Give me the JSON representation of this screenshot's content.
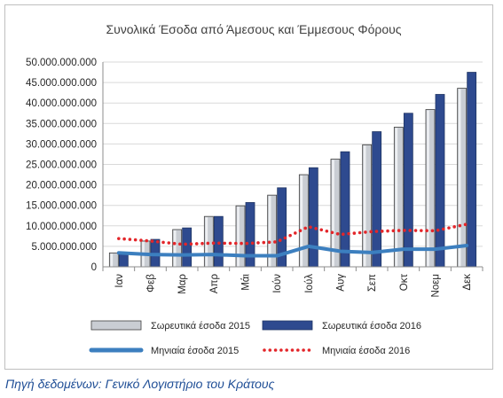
{
  "chart_data": {
    "type": "bar",
    "title": "Συνολικά Έσοδα από Άμεσους και Έμμεσους Φόρους",
    "xlabel": "",
    "ylabel": "",
    "ylim": [
      0,
      50000000000
    ],
    "yticks": [
      0,
      5000000000,
      10000000000,
      15000000000,
      20000000000,
      25000000000,
      30000000000,
      35000000000,
      40000000000,
      45000000000,
      50000000000
    ],
    "ytick_labels": [
      "0",
      "5.000.000.000",
      "10.000.000.000",
      "15.000.000.000",
      "20.000.000.000",
      "25.000.000.000",
      "30.000.000.000",
      "35.000.000.000",
      "40.000.000.000",
      "45.000.000.000",
      "50.000.000.000"
    ],
    "categories": [
      "Ιαν",
      "Φεβ",
      "Μαρ",
      "Απρ",
      "Μάι",
      "Ιούν",
      "Ιούλ",
      "Αυγ",
      "Σεπ",
      "Οκτ",
      "Νοεμ",
      "Δεκ"
    ],
    "grid": true,
    "legend_position": "bottom",
    "series": [
      {
        "name": "Σωρευτικά έσοδα 2015",
        "kind": "bar",
        "color": "#c9cdd3",
        "values": [
          3400000000,
          6300000000,
          9100000000,
          12300000000,
          14900000000,
          17500000000,
          22500000000,
          26300000000,
          29800000000,
          34100000000,
          38400000000,
          43600000000
        ]
      },
      {
        "name": "Σωρευτικά έσοδα 2016",
        "kind": "bar",
        "color": "#2e4a8f",
        "values": [
          3100000000,
          6700000000,
          9500000000,
          12300000000,
          15700000000,
          19300000000,
          24200000000,
          28100000000,
          33000000000,
          37500000000,
          42100000000,
          47500000000
        ]
      },
      {
        "name": "Μηνιαία έσοδα 2015",
        "kind": "line",
        "color": "#3c7fbf",
        "values": [
          3400000000,
          3000000000,
          2900000000,
          3000000000,
          2700000000,
          2700000000,
          5000000000,
          3800000000,
          3500000000,
          4300000000,
          4300000000,
          5200000000
        ]
      },
      {
        "name": "Μηνιαία έσοδα 2016",
        "kind": "dotted-line",
        "color": "#e3262a",
        "values": [
          6900000000,
          6300000000,
          5500000000,
          5800000000,
          5700000000,
          6100000000,
          9800000000,
          7900000000,
          8600000000,
          8900000000,
          8800000000,
          10400000000
        ]
      }
    ]
  },
  "source_note": "Πηγή δεδομένων: Γενικό Λογιστήριο του Κράτους"
}
